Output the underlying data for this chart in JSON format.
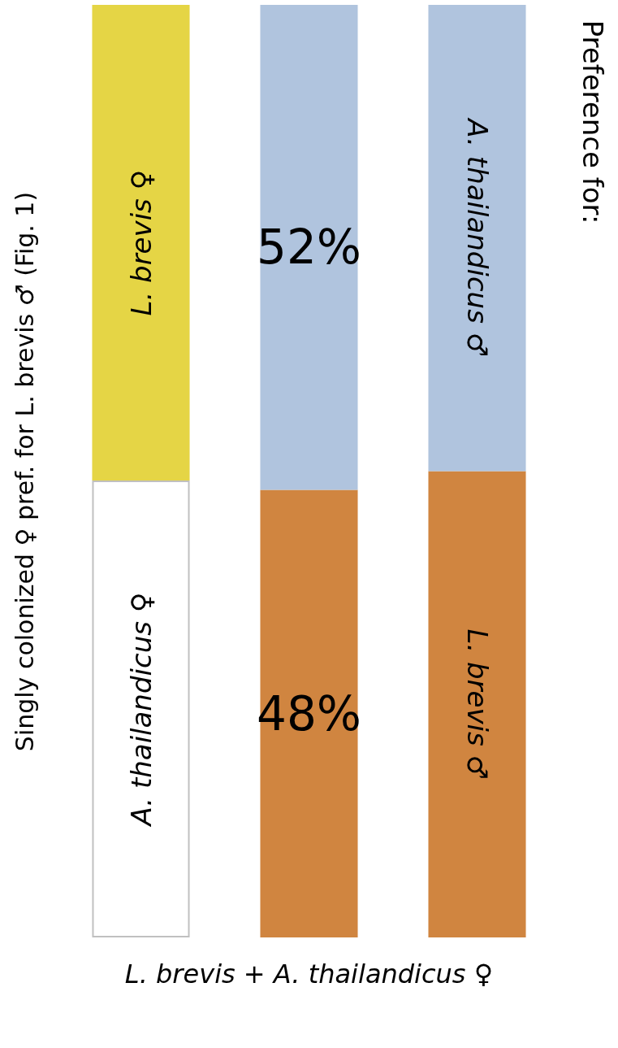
{
  "chart_data": {
    "type": "bar",
    "stacked": true,
    "tick_labels": false,
    "categories": [
      null,
      null,
      null
    ],
    "xlabel": "L. brevis + A. thailandicus ♀",
    "ylabel": "Singly colonized ♀ pref. for L. brevis ♂ (Fig. 1)",
    "annotations": [
      "Preference for:"
    ],
    "series": [
      {
        "colors": [
          "#ffffff",
          "#d08540",
          "#d08540"
        ],
        "values": [
          49,
          48,
          50
        ],
        "value_labels": [
          "A. thailandicus ♀",
          "48%",
          "L. brevis ♂"
        ]
      },
      {
        "colors": [
          "#e5d545",
          "#b0c4de",
          "#b0c4de"
        ],
        "values": [
          51,
          52,
          50
        ],
        "value_labels": [
          "L. brevis ♀",
          "52%",
          "A. thailandicus ♂"
        ]
      }
    ],
    "grid": false
  }
}
